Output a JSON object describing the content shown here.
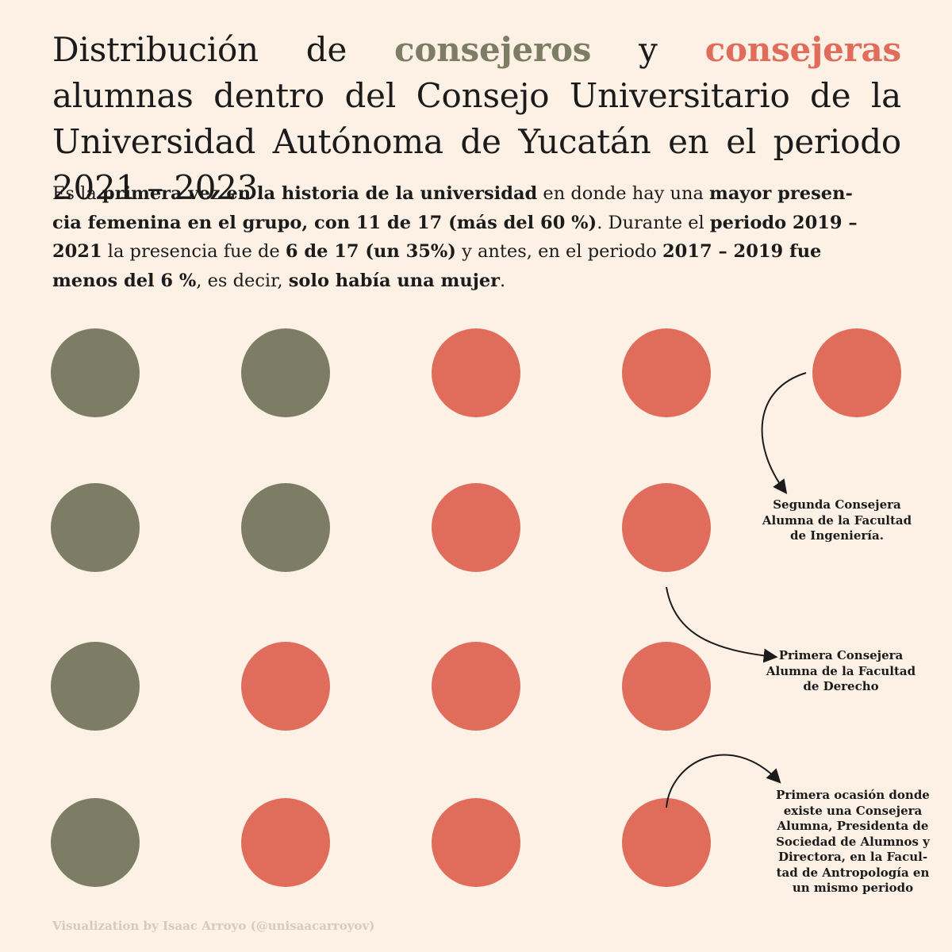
{
  "title": {
    "part1": "Distribución de ",
    "word_male": "consejeros",
    "part2": " y ",
    "word_female": "consejeras",
    "part3": " alumnas dentro del Consejo Universitario de la Universidad Autónoma de Yucatán en el periodo 2021 – 2023"
  },
  "intro": {
    "t1": "Es la ",
    "b1": "primera vez en la historia de la universidad",
    "t2": " en donde hay una ",
    "b2": "mayor presen­cia femenina en el grupo, con 11 de 17 (más del 60 %)",
    "t3": ". Durante el ",
    "b3": "periodo 2019 – 2021",
    "t4": " la presencia fue de ",
    "b4": "6 de 17 (un 35%)",
    "t5": " y antes, en el periodo ",
    "b5": "2017 – 2019 fue menos del 6 %",
    "t6": ", es decir, ",
    "b6": "solo había una mujer",
    "t7": "."
  },
  "colors": {
    "male": "#7c7d64",
    "female": "#e06c5b",
    "background": "#fcf1e4",
    "text": "#1b1b1b",
    "credit": "#d7cbb8"
  },
  "chart_data": {
    "type": "dot-grid",
    "rows": [
      [
        "consejero",
        "consejero",
        "consejera",
        "consejera",
        "consejera"
      ],
      [
        "consejero",
        "consejero",
        "consejera",
        "consejera"
      ],
      [
        "consejero",
        "consejera",
        "consejera",
        "consejera"
      ],
      [
        "consejero",
        "consejera",
        "consejera",
        "consejera"
      ]
    ],
    "totals": {
      "consejeros": 6,
      "consejeras": 11,
      "total": 17
    }
  },
  "annotations": [
    {
      "text": "Segunda Consejera Alumna de la Facultad de Ingeniería."
    },
    {
      "text": "Primera Consejera Alumna de la Facultad de Derecho"
    },
    {
      "text": "Primera ocasión donde existe una Consejera Alumna, Presidenta de Sociedad de Alumnos y Directora, en la Facul­tad de Antropología en un mismo periodo"
    }
  ],
  "credit": "Visualization by Isaac Arroyo (@unisaacarroyov)"
}
